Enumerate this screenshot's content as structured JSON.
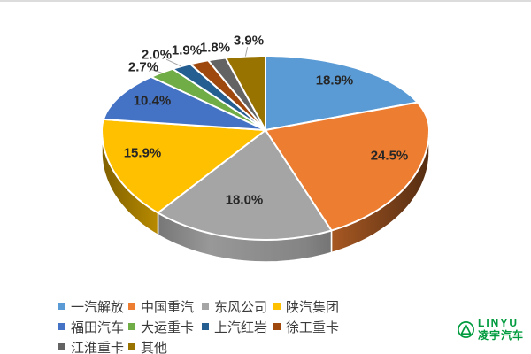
{
  "page": {
    "background": "#ffffff",
    "top_border_color": "#dcdcdc"
  },
  "chart_data": {
    "type": "pie",
    "style": "3d",
    "title": "",
    "unit": "%",
    "direction": "clockwise",
    "start_angle_deg": 0,
    "legend_position": "bottom-left",
    "label_color": "#262626",
    "leader_line_color": "#A6A6A6",
    "series": [
      {
        "name": "一汽解放",
        "value": 18.9,
        "color": "#5B9BD5",
        "label_placement": "inside",
        "leader_line": false
      },
      {
        "name": "中国重汽",
        "value": 24.5,
        "color": "#ED7D31",
        "label_placement": "inside",
        "leader_line": false
      },
      {
        "name": "东风公司",
        "value": 18.0,
        "color": "#A5A5A5",
        "label_placement": "inside",
        "leader_line": false
      },
      {
        "name": "陕汽集团",
        "value": 15.9,
        "color": "#FFC000",
        "label_placement": "inside",
        "leader_line": false
      },
      {
        "name": "福田汽车",
        "value": 10.4,
        "color": "#4472C4",
        "label_placement": "inside",
        "leader_line": false
      },
      {
        "name": "大运重卡",
        "value": 2.7,
        "color": "#70AD47",
        "label_placement": "outside",
        "leader_line": true
      },
      {
        "name": "上汽红岩",
        "value": 2.0,
        "color": "#255E91",
        "label_placement": "outside",
        "leader_line": true
      },
      {
        "name": "徐工重卡",
        "value": 1.9,
        "color": "#9E480E",
        "label_placement": "outside",
        "leader_line": false
      },
      {
        "name": "江淮重卡",
        "value": 1.8,
        "color": "#636363",
        "label_placement": "outside",
        "leader_line": false
      },
      {
        "name": "其他",
        "value": 3.9,
        "color": "#997300",
        "label_placement": "outside",
        "leader_line": true
      }
    ],
    "data_labels": [
      "18.9%",
      "24.5%",
      "18.0%",
      "15.9%",
      "10.4%",
      "2.7%",
      "2.0%",
      "1.9%",
      "1.8%",
      "3.9%"
    ]
  },
  "logo": {
    "brand": "LINYU",
    "subtitle": "凌宇汽车",
    "color": "#009B3E"
  }
}
